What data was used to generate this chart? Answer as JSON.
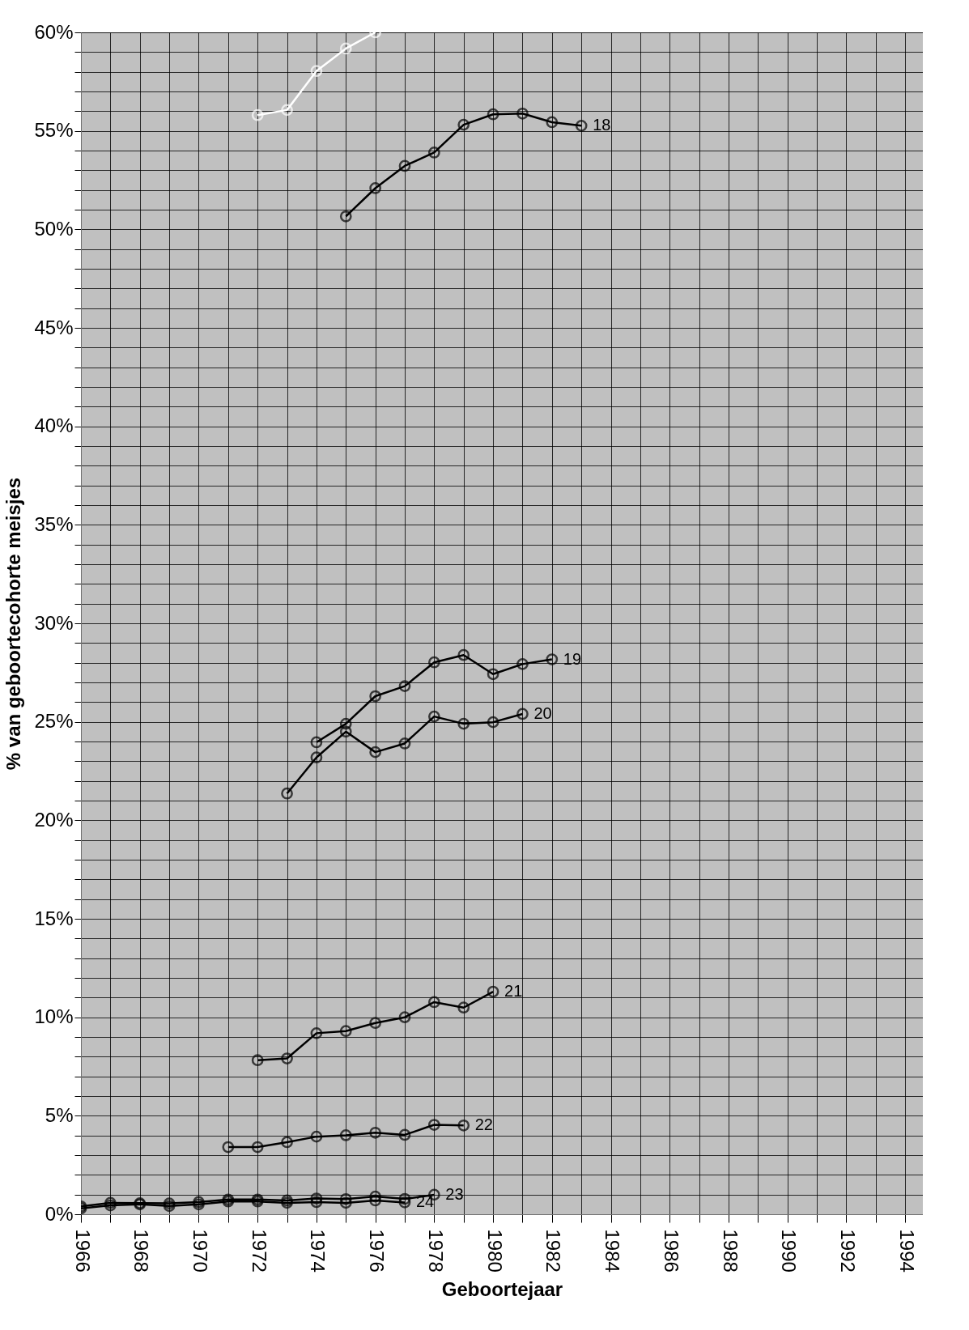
{
  "chart_data": {
    "type": "line",
    "xlabel": "Geboortejaar",
    "ylabel": "% van geboortecohorte meisjes",
    "xlim": [
      1966,
      1994.6
    ],
    "xticks": [
      1966,
      {
        "value": 1967,
        "label": null
      },
      1968,
      {
        "value": 1969,
        "label": null
      },
      1970,
      {
        "value": 1971,
        "label": null
      },
      1972,
      {
        "value": 1973,
        "label": null
      },
      1974,
      {
        "value": 1975,
        "label": null
      },
      1976,
      {
        "value": 1977,
        "label": null
      },
      1978,
      {
        "value": 1979,
        "label": null
      },
      1980,
      {
        "value": 1981,
        "label": null
      },
      1982,
      {
        "value": 1983,
        "label": null
      },
      1984,
      {
        "value": 1985,
        "label": null
      },
      1986,
      {
        "value": 1987,
        "label": null
      },
      1988,
      {
        "value": 1989,
        "label": null
      },
      1990,
      {
        "value": 1991,
        "label": null
      },
      1992,
      {
        "value": 1993,
        "label": null
      },
      1994
    ],
    "ylim": [
      0,
      60
    ],
    "yticks": [
      {
        "value": 0,
        "label": "0%"
      },
      {
        "value": 1,
        "label": null
      },
      {
        "value": 2,
        "label": null
      },
      {
        "value": 3,
        "label": null
      },
      {
        "value": 4,
        "label": null
      },
      {
        "value": 5,
        "label": "5%"
      },
      {
        "value": 6,
        "label": null
      },
      {
        "value": 7,
        "label": null
      },
      {
        "value": 8,
        "label": null
      },
      {
        "value": 9,
        "label": null
      },
      {
        "value": 10,
        "label": "10%"
      },
      {
        "value": 11,
        "label": null
      },
      {
        "value": 12,
        "label": null
      },
      {
        "value": 13,
        "label": null
      },
      {
        "value": 14,
        "label": null
      },
      {
        "value": 15,
        "label": "15%"
      },
      {
        "value": 16,
        "label": null
      },
      {
        "value": 17,
        "label": null
      },
      {
        "value": 18,
        "label": null
      },
      {
        "value": 19,
        "label": null
      },
      {
        "value": 20,
        "label": "20%"
      },
      {
        "value": 21,
        "label": null
      },
      {
        "value": 22,
        "label": null
      },
      {
        "value": 23,
        "label": null
      },
      {
        "value": 24,
        "label": null
      },
      {
        "value": 25,
        "label": "25%"
      },
      {
        "value": 26,
        "label": null
      },
      {
        "value": 27,
        "label": null
      },
      {
        "value": 28,
        "label": null
      },
      {
        "value": 29,
        "label": null
      },
      {
        "value": 30,
        "label": "30%"
      },
      {
        "value": 31,
        "label": null
      },
      {
        "value": 32,
        "label": null
      },
      {
        "value": 33,
        "label": null
      },
      {
        "value": 34,
        "label": null
      },
      {
        "value": 35,
        "label": "35%"
      },
      {
        "value": 36,
        "label": null
      },
      {
        "value": 37,
        "label": null
      },
      {
        "value": 38,
        "label": null
      },
      {
        "value": 39,
        "label": null
      },
      {
        "value": 40,
        "label": "40%"
      },
      {
        "value": 41,
        "label": null
      },
      {
        "value": 42,
        "label": null
      },
      {
        "value": 43,
        "label": null
      },
      {
        "value": 44,
        "label": null
      },
      {
        "value": 45,
        "label": "45%"
      },
      {
        "value": 46,
        "label": null
      },
      {
        "value": 47,
        "label": null
      },
      {
        "value": 48,
        "label": null
      },
      {
        "value": 49,
        "label": null
      },
      {
        "value": 50,
        "label": "50%"
      },
      {
        "value": 51,
        "label": null
      },
      {
        "value": 52,
        "label": null
      },
      {
        "value": 53,
        "label": null
      },
      {
        "value": 54,
        "label": null
      },
      {
        "value": 55,
        "label": "55%"
      },
      {
        "value": 56,
        "label": null
      },
      {
        "value": 57,
        "label": null
      },
      {
        "value": 58,
        "label": null
      },
      {
        "value": 59,
        "label": null
      },
      {
        "value": 60,
        "label": "60%"
      }
    ],
    "grid": true,
    "marker": "circle",
    "line_style": "solid",
    "series": [
      {
        "color": "#ffffff",
        "x": [
          1972,
          1973,
          1974,
          1975,
          1976
        ],
        "values": [
          55.8,
          56.06,
          58.04,
          59.18,
          60
        ]
      },
      {
        "name": "18",
        "color": "#000000",
        "x": [
          1975,
          1976,
          1977,
          1978,
          1979,
          1980,
          1981,
          1982,
          1983
        ],
        "values": [
          50.66,
          52.09,
          53.22,
          53.9,
          55.31,
          55.84,
          55.88,
          55.44,
          55.26
        ]
      },
      {
        "name": "19",
        "color": "#000000",
        "x": [
          1974,
          1975,
          1976,
          1977,
          1978,
          1979,
          1980,
          1981,
          1982
        ],
        "values": [
          23.96,
          24.9,
          26.3,
          26.81,
          28.02,
          28.39,
          27.42,
          27.93,
          28.17
        ]
      },
      {
        "name": "20",
        "color": "#000000",
        "x": [
          1973,
          1974,
          1975,
          1976,
          1977,
          1978,
          1979,
          1980,
          1981
        ],
        "values": [
          21.36,
          23.19,
          24.5,
          23.46,
          23.9,
          25.27,
          24.9,
          24.98,
          25.4
        ]
      },
      {
        "name": "21",
        "color": "#000000",
        "x": [
          1972,
          1973,
          1974,
          1975,
          1976,
          1977,
          1978,
          1979,
          1980
        ],
        "values": [
          7.82,
          7.91,
          9.19,
          9.3,
          9.71,
          10.0,
          10.77,
          10.49,
          11.3
        ]
      },
      {
        "name": "22",
        "color": "#000000",
        "x": [
          1971,
          1972,
          1973,
          1974,
          1975,
          1976,
          1977,
          1978,
          1979
        ],
        "values": [
          3.41,
          3.41,
          3.66,
          3.94,
          4.01,
          4.14,
          4.03,
          4.54,
          4.51
        ]
      },
      {
        "name": "23",
        "color": "#000000",
        "x": [
          1966,
          1967,
          1968,
          1969,
          1970,
          1971,
          1972,
          1973,
          1974,
          1975,
          1976,
          1977,
          1978
        ],
        "values": [
          0.4,
          0.58,
          0.56,
          0.55,
          0.62,
          0.75,
          0.75,
          0.7,
          0.8,
          0.77,
          0.9,
          0.78,
          0.99
        ]
      },
      {
        "name": "24",
        "color": "#000000",
        "x": [
          1966,
          1967,
          1968,
          1969,
          1970,
          1971,
          1972,
          1973,
          1974,
          1975,
          1976,
          1977
        ],
        "values": [
          0.3,
          0.45,
          0.5,
          0.42,
          0.5,
          0.65,
          0.65,
          0.58,
          0.62,
          0.58,
          0.7,
          0.6
        ]
      }
    ]
  }
}
